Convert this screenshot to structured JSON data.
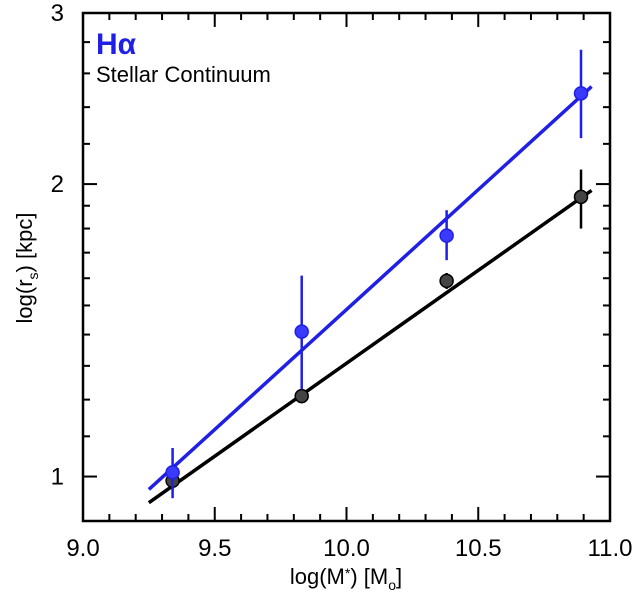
{
  "chart_data": {
    "type": "scatter",
    "xlabel_main": "log(M",
    "xlabel_sub": "*",
    "xlabel_tail": ") [M",
    "xlabel_sun": "o",
    "xlabel_end": "]",
    "ylabel_main": "log(r",
    "ylabel_sub": "s",
    "ylabel_tail": ") [kpc]",
    "xlim": [
      9.0,
      11.0
    ],
    "ylim": [
      0.9,
      3.0
    ],
    "yscale": "log",
    "x_ticks": [
      {
        "v": 9.0,
        "label": "9.0"
      },
      {
        "v": 9.5,
        "label": "9.5"
      },
      {
        "v": 10.0,
        "label": "10.0"
      },
      {
        "v": 10.5,
        "label": "10.5"
      },
      {
        "v": 11.0,
        "label": "11.0"
      }
    ],
    "y_ticks": [
      {
        "v": 1,
        "label": "1"
      },
      {
        "v": 2,
        "label": "2"
      },
      {
        "v": 3,
        "label": "3"
      }
    ],
    "legend_position": "top-left",
    "series": [
      {
        "name": "Hα",
        "color": "#1f1fe6",
        "marker_color": "#3a3aff",
        "points": [
          {
            "x": 9.34,
            "y": 1.01,
            "yerr_lo": 0.95,
            "yerr_hi": 1.07
          },
          {
            "x": 9.83,
            "y": 1.41,
            "yerr_lo": 1.23,
            "yerr_hi": 1.61
          },
          {
            "x": 10.38,
            "y": 1.77,
            "yerr_lo": 1.67,
            "yerr_hi": 1.88
          },
          {
            "x": 10.89,
            "y": 2.48,
            "yerr_lo": 2.23,
            "yerr_hi": 2.75
          }
        ],
        "fit": {
          "x": [
            9.25,
            10.93
          ],
          "y": [
            0.97,
            2.52
          ]
        }
      },
      {
        "name": "Stellar Continuum",
        "color": "#000000",
        "marker_color": "#444444",
        "points": [
          {
            "x": 9.34,
            "y": 0.99,
            "yerr_lo": 0.97,
            "yerr_hi": 1.02
          },
          {
            "x": 9.83,
            "y": 1.21,
            "yerr_lo": 1.19,
            "yerr_hi": 1.23
          },
          {
            "x": 10.38,
            "y": 1.59,
            "yerr_lo": 1.56,
            "yerr_hi": 1.62
          },
          {
            "x": 10.89,
            "y": 1.94,
            "yerr_lo": 1.8,
            "yerr_hi": 2.07
          }
        ],
        "fit": {
          "x": [
            9.25,
            10.93
          ],
          "y": [
            0.94,
            1.97
          ]
        }
      }
    ]
  }
}
